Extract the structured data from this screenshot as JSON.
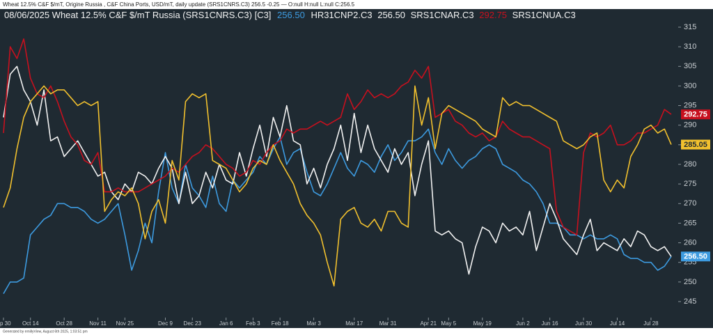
{
  "header": "Wheat 12.5%  C&F $/mT, Origine Russia , C&F China Ports, USD/mT, daily update (SRS1CNRS.C3) 256.5 -0.25 — O:null H:null L:null C:256.5",
  "footer": "Generated by emillyView, August 6th 2025, 1:03:51 pm",
  "chart_data": {
    "type": "line",
    "title": "08/06/2025 Wheat 12.5% C&F $/mT Russia (SRS1CNRS.C3) [C3]",
    "categories": [
      "p 30",
      null,
      null,
      null,
      "Oct 14",
      null,
      null,
      null,
      null,
      "Oct 28",
      null,
      null,
      null,
      null,
      "Nov 11",
      null,
      null,
      null,
      "Nov 25",
      null,
      null,
      null,
      null,
      null,
      "Dec 9",
      null,
      null,
      null,
      "Dec 23",
      null,
      null,
      null,
      null,
      "Jan 6",
      null,
      null,
      null,
      "Feb 3",
      null,
      null,
      null,
      "Feb 18",
      null,
      null,
      null,
      null,
      "Mar 3",
      null,
      null,
      null,
      null,
      null,
      "Mar 17",
      null,
      null,
      null,
      null,
      "Mar 31",
      null,
      null,
      null,
      null,
      null,
      "Apr 21",
      null,
      null,
      "May 5",
      null,
      null,
      null,
      null,
      "May 19",
      null,
      null,
      null,
      null,
      null,
      "Jun 2",
      null,
      null,
      null,
      "Jun 16",
      null,
      null,
      null,
      null,
      "Jun 30",
      null,
      null,
      null,
      null,
      "Jul 14",
      null,
      null,
      null,
      null,
      "Jul 28",
      null,
      null,
      null
    ],
    "ylim": [
      245,
      315
    ],
    "yticks": [
      245,
      250,
      255,
      260,
      265,
      270,
      275,
      280,
      285,
      290,
      295,
      300,
      305,
      310,
      315
    ],
    "grid": false,
    "series": [
      {
        "color": "#3d9be0",
        "last_label": "256.50",
        "values": [
          247,
          250,
          250,
          251,
          262,
          264,
          266,
          267,
          270,
          270,
          269,
          269,
          268,
          266,
          265,
          266,
          268,
          270,
          262,
          253,
          258,
          265,
          260,
          273,
          283,
          274,
          270,
          280,
          274,
          272,
          269,
          277,
          270,
          268,
          276,
          274,
          276,
          278,
          282,
          280,
          284,
          287,
          280,
          283,
          284,
          278,
          273,
          272,
          275,
          279,
          283,
          279,
          277,
          281,
          280,
          278,
          282,
          285,
          281,
          283,
          286,
          286,
          287,
          289,
          283,
          280,
          284,
          281,
          279,
          281,
          282,
          284,
          285,
          284,
          280,
          279,
          278,
          276,
          275,
          273,
          270,
          265,
          265,
          264,
          262,
          262,
          261,
          262,
          261,
          261,
          262,
          261,
          257,
          256,
          256,
          255,
          255,
          253,
          254,
          256.5
        ]
      },
      {
        "name": "HR31CNP2.C3",
        "color": "#f2f2f2",
        "last_label": "256.50",
        "values": [
          292,
          303,
          305,
          299,
          296,
          290,
          299,
          286,
          287,
          282,
          284,
          286,
          283,
          280,
          277,
          278,
          273,
          271,
          275,
          273,
          278,
          277,
          275,
          279,
          282,
          279,
          270,
          278,
          270,
          272,
          278,
          274,
          280,
          276,
          275,
          283,
          277,
          284,
          290,
          282,
          292,
          287,
          295,
          286,
          285,
          275,
          279,
          274,
          280,
          284,
          290,
          281,
          293,
          283,
          290,
          284,
          281,
          278,
          284,
          280,
          283,
          272,
          280,
          286,
          263,
          262,
          263,
          261,
          260,
          252,
          259,
          264,
          263,
          260,
          265,
          263,
          264,
          262,
          268,
          258,
          264,
          270,
          266,
          261,
          259,
          257,
          262,
          266,
          258,
          260,
          259,
          258,
          261,
          259,
          263,
          262,
          259,
          258,
          259,
          256.5
        ]
      },
      {
        "name": "SRS1CNAR.C3",
        "color": "#c8101e",
        "last_label": "292.75",
        "values": [
          288,
          310,
          307,
          312,
          302,
          298,
          297,
          300,
          296,
          291,
          287,
          285,
          281,
          280,
          283,
          273,
          273,
          274,
          273,
          273,
          273,
          274,
          275,
          276,
          277,
          279,
          278,
          280,
          282,
          283,
          285,
          284,
          282,
          280,
          279,
          277,
          278,
          281,
          280,
          283,
          285,
          286,
          289,
          288,
          289,
          289,
          290,
          291,
          290,
          291,
          292,
          298,
          294,
          296,
          299,
          297,
          298,
          297,
          298,
          300,
          301,
          304,
          302,
          305,
          292,
          293,
          294,
          291,
          290,
          288,
          287,
          288,
          286,
          287,
          291,
          289,
          288,
          287,
          287,
          286,
          285,
          284,
          268,
          264,
          263,
          262,
          283,
          288,
          287,
          288,
          290,
          285,
          285,
          286,
          288,
          288,
          289,
          290,
          294,
          292.75
        ]
      },
      {
        "name": "SRS1CNUA.C3",
        "color": "#f2c12e",
        "last_label": "285.05",
        "values": [
          269,
          274,
          284,
          292,
          296,
          298,
          300,
          298,
          299,
          299,
          297,
          295,
          296,
          295,
          296,
          268,
          271,
          273,
          272,
          274,
          270,
          261,
          268,
          271,
          265,
          281,
          276,
          296,
          298,
          297,
          298,
          281,
          280,
          279,
          276,
          273,
          275,
          279,
          281,
          280,
          285,
          281,
          278,
          275,
          270,
          267,
          265,
          262,
          255,
          249,
          266,
          268,
          269,
          265,
          264,
          266,
          263,
          268,
          268,
          265,
          264,
          300,
          290,
          297,
          284,
          293,
          295,
          294,
          293,
          292,
          291,
          289,
          288,
          287,
          297,
          295,
          296,
          295,
          295,
          294,
          293,
          292,
          291,
          286,
          285,
          284,
          285,
          287,
          288,
          276,
          273,
          276,
          274,
          282,
          285,
          289,
          290,
          288,
          289,
          285.05
        ]
      }
    ]
  }
}
